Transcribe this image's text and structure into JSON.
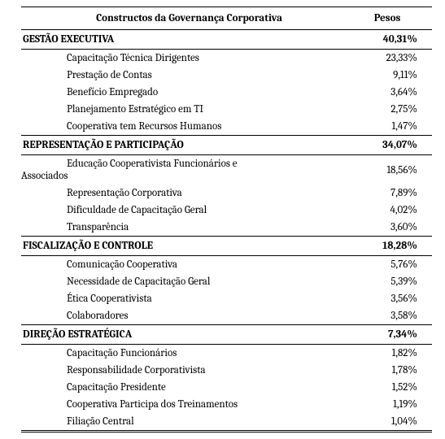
{
  "header": {
    "col_constructos": "Constructos da Governança Corporativa",
    "col_pesos": "Pesos"
  },
  "sections": [
    {
      "title": "GESTÃO EXECUTIVA",
      "peso": "40,31%",
      "items": [
        {
          "label": "Capacitação Técnica Dirigentes",
          "peso": "23,33%"
        },
        {
          "label": "Prestação de Contas",
          "peso": "9,11%"
        },
        {
          "label": "Benefício Empregado",
          "peso": "3,64%"
        },
        {
          "label": "Planejamento Estratégico em TI",
          "peso": "2,75%"
        },
        {
          "label": "Cooperativa tem Recursos Humanos",
          "peso": "1,47%"
        }
      ]
    },
    {
      "title": "REPRESENTAÇÃO E PARTICIPAÇÃO",
      "peso": "34,07%",
      "items": [
        {
          "label_l1": "Educação Cooperativista Funcionários e",
          "label_l2": "Associados",
          "peso": "18,56%",
          "wrap": true
        },
        {
          "label": "Representação Corporativa",
          "peso": "7,89%"
        },
        {
          "label": "Dificuldade de Capacitação Geral",
          "peso": "4,02%"
        },
        {
          "label": "Transparência",
          "peso": "3,60%"
        }
      ]
    },
    {
      "title": "FISCALIZAÇÃO E CONTROLE",
      "peso": "18,28%",
      "items": [
        {
          "label": "Comunicação Cooperativa",
          "peso": "5,76%"
        },
        {
          "label": "Necessidade de Capacitação Geral",
          "peso": "5,39%"
        },
        {
          "label": "Ética Cooperativista",
          "peso": "3,56%"
        },
        {
          "label": "Colaboradores",
          "peso": "3,58%"
        }
      ]
    },
    {
      "title": "DIREÇÃO ESTRATÉGICA",
      "peso": "7,34%",
      "items": [
        {
          "label": "Capacitação Funcionários",
          "peso": "1,82%"
        },
        {
          "label": "Responsabilidade Corporativista",
          "peso": "1,78%"
        },
        {
          "label": "Capacitação Presidente",
          "peso": "1,52%"
        },
        {
          "label": "Cooperativa Participa dos Treinamentos",
          "peso": "1,19%"
        },
        {
          "label": "Filiação Central",
          "peso": "1,04%"
        }
      ]
    }
  ]
}
